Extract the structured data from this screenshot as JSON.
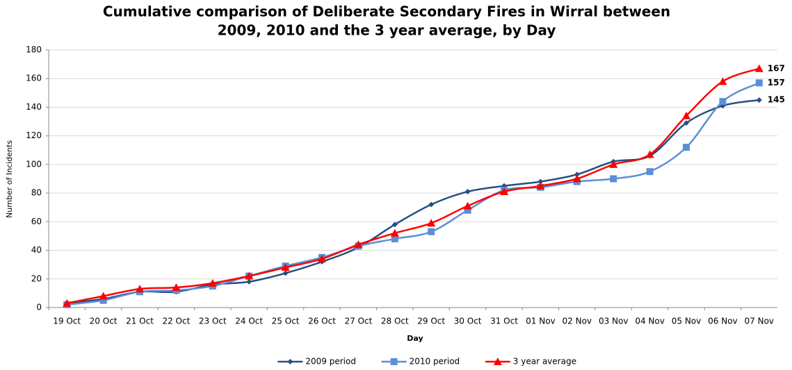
{
  "chart_data": {
    "type": "line",
    "title": "Cumulative comparison of Deliberate Secondary Fires in Wirral between",
    "subtitle": "2009, 2010 and the 3 year average, by Day",
    "y_label": "Number of Incidents",
    "x_label": "Day",
    "categories": [
      "19 Oct",
      "20 Oct",
      "21 Oct",
      "22 Oct",
      "23 Oct",
      "24 Oct",
      "25 Oct",
      "26 Oct",
      "27 Oct",
      "28 Oct",
      "29 Oct",
      "30 Oct",
      "31 Oct",
      "01 Nov",
      "02 Nov",
      "03 Nov",
      "04 Nov",
      "05 Nov",
      "06 Nov",
      "07 Nov"
    ],
    "series": [
      {
        "name": "2009 period",
        "color": "#264f80",
        "marker": "diamond",
        "values": [
          3,
          6,
          11,
          11,
          16,
          18,
          24,
          32,
          42,
          58,
          72,
          81,
          85,
          88,
          93,
          102,
          106,
          129,
          141,
          145
        ]
      },
      {
        "name": "2010 period",
        "color": "#5b8fd6",
        "marker": "square",
        "values": [
          2,
          5,
          11,
          12,
          15,
          22,
          29,
          35,
          43,
          48,
          53,
          68,
          82,
          84,
          88,
          90,
          95,
          112,
          144,
          157
        ]
      },
      {
        "name": "3 year average",
        "color": "#ff0000",
        "marker": "triangle",
        "values": [
          3,
          8,
          13,
          14,
          17,
          22,
          28,
          34,
          44,
          52,
          59,
          71,
          81,
          85,
          90,
          100,
          107,
          134,
          158,
          167
        ]
      }
    ],
    "ylim": [
      0,
      180
    ],
    "yticks": [
      0,
      20,
      40,
      60,
      80,
      100,
      120,
      140,
      160,
      180
    ],
    "grid": true,
    "smooth": true,
    "legend": "bottom"
  }
}
